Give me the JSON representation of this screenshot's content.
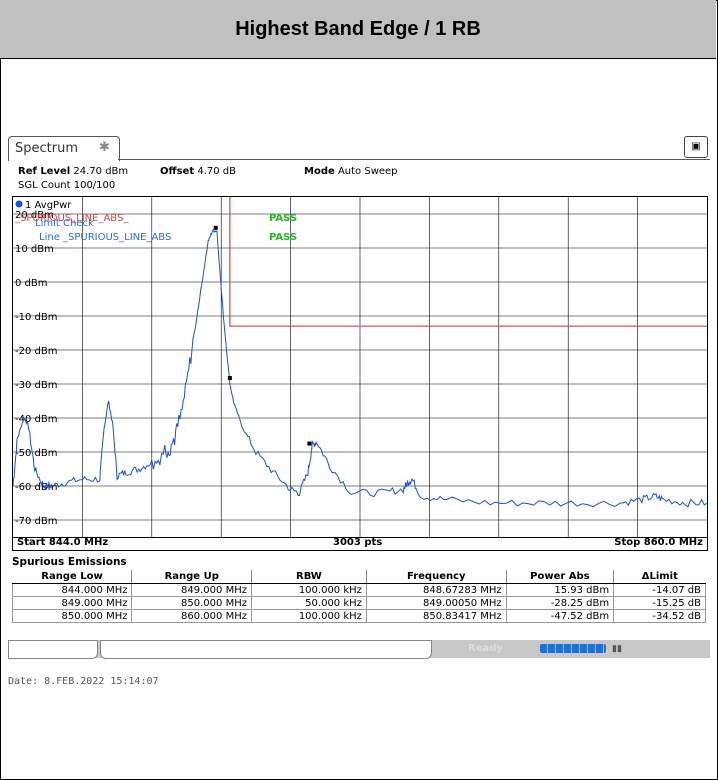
{
  "page_title": "Highest Band Edge / 1 RB",
  "analyzer": {
    "tab_label": "Spectrum",
    "ref_level_label": "Ref Level",
    "ref_level_value": "24.70 dBm",
    "offset_label": "Offset",
    "offset_value": "4.70 dB",
    "mode_label": "Mode",
    "mode_value": "Auto Sweep",
    "sgl_count": "SGL Count 100/100",
    "trace_label": "1 AvgPwr",
    "limit_check_label": "Limit Check",
    "limit_line_label": "Line _SPURIOUS_LINE_ABS",
    "spurious_line_label": "_SPURIOUS_LINE_ABS_",
    "pass_1": "PASS",
    "pass_2": "PASS",
    "start": "Start 844.0 MHz",
    "points": "3003 pts",
    "stop": "Stop 860.0 MHz",
    "status_ready": "Ready"
  },
  "chart_data": {
    "type": "line",
    "x_range": [
      844.0,
      860.0
    ],
    "x_unit": "MHz",
    "ylim": [
      -75,
      25
    ],
    "y_ticks": [
      {
        "value": 20,
        "label": "20 dBm"
      },
      {
        "value": 10,
        "label": "10 dBm"
      },
      {
        "value": 0,
        "label": "0 dBm"
      },
      {
        "value": -10,
        "label": "-10 dBm"
      },
      {
        "value": -20,
        "label": "-20 dBm"
      },
      {
        "value": -30,
        "label": "-30 dBm"
      },
      {
        "value": -40,
        "label": "-40 dBm"
      },
      {
        "value": -50,
        "label": "-50 dBm"
      },
      {
        "value": -60,
        "label": "-60 dBm"
      },
      {
        "value": -70,
        "label": "-70 dBm"
      }
    ],
    "grid": true,
    "limit_line": {
      "x": [
        849.0,
        849.0,
        860.0
      ],
      "y": [
        25,
        -13,
        -13
      ]
    },
    "trace": {
      "x": [
        844.0,
        844.1,
        844.25,
        844.35,
        844.5,
        844.7,
        844.9,
        845.2,
        845.6,
        846.0,
        846.1,
        846.2,
        846.3,
        846.4,
        846.6,
        846.9,
        847.2,
        847.5,
        847.7,
        847.9,
        848.1,
        848.3,
        848.5,
        848.6,
        848.7,
        848.85,
        849.0,
        849.1,
        849.3,
        849.6,
        850.0,
        850.4,
        850.6,
        850.8,
        850.9,
        851.0,
        851.3,
        851.8,
        852.5,
        853.0,
        853.1,
        853.2,
        853.4,
        854.0,
        855.0,
        856.0,
        857.0,
        858.0,
        858.5,
        858.8,
        859.0,
        859.5,
        860.0
      ],
      "y": [
        -60,
        -46,
        -40,
        -42,
        -55,
        -60,
        -60,
        -59,
        -58,
        -58,
        -43,
        -35,
        -42,
        -57,
        -56,
        -55,
        -53,
        -50,
        -47,
        -38,
        -22,
        -5,
        12,
        15,
        15,
        -10,
        -30,
        -36,
        -43,
        -50,
        -56,
        -61,
        -62,
        -56,
        -48,
        -47,
        -54,
        -62,
        -62,
        -61,
        -59,
        -58,
        -63,
        -64,
        -65,
        -65,
        -65,
        -65,
        -64,
        -63,
        -64,
        -65,
        -65
      ]
    },
    "markers": [
      {
        "x": 848.67283,
        "y": 15.93
      },
      {
        "x": 849.0005,
        "y": -28.25
      },
      {
        "x": 850.83417,
        "y": -47.52
      }
    ]
  },
  "spurious": {
    "title": "Spurious Emissions",
    "headers": [
      "Range Low",
      "Range Up",
      "RBW",
      "Frequency",
      "Power Abs",
      "ΔLimit"
    ],
    "rows": [
      [
        "844.000 MHz",
        "849.000 MHz",
        "100.000 kHz",
        "848.67283 MHz",
        "15.93 dBm",
        "-14.07 dB"
      ],
      [
        "849.000 MHz",
        "850.000 MHz",
        "50.000 kHz",
        "849.00050 MHz",
        "-28.25 dBm",
        "-15.25 dB"
      ],
      [
        "850.000 MHz",
        "860.000 MHz",
        "100.000 kHz",
        "850.83417 MHz",
        "-47.52 dBm",
        "-34.52 dB"
      ]
    ]
  },
  "date_stamp": "Date: 8.FEB.2022  15:14:07",
  "colors": {
    "trace": "#1a4fe0",
    "limit": "#e04040",
    "pass": "#22bb22",
    "limit_label": "#e04040",
    "line_label": "#2a6ae8"
  }
}
